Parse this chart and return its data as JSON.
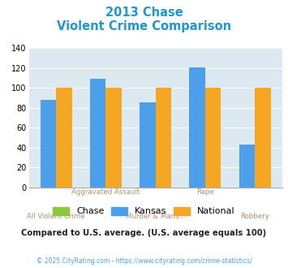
{
  "title_line1": "2013 Chase",
  "title_line2": "Violent Crime Comparison",
  "categories": [
    "All Violent Crime",
    "Aggravated Assault",
    "Murder & Mans...",
    "Rape",
    "Robbery"
  ],
  "kansas_values": [
    88,
    109,
    86,
    121,
    43
  ],
  "national_values": [
    100,
    100,
    100,
    100,
    100
  ],
  "bar_colors": {
    "chase": "#8dc63f",
    "kansas": "#4d9fea",
    "national": "#f5a623"
  },
  "ylim": [
    0,
    140
  ],
  "yticks": [
    0,
    20,
    40,
    60,
    80,
    100,
    120,
    140
  ],
  "background_color": "#dce9f0",
  "title_color": "#2196d4",
  "xlabel_color": "#b09070",
  "note_text": "Compared to U.S. average. (U.S. average equals 100)",
  "note_color": "#222222",
  "copyright_text": "© 2025 CityRating.com - https://www.cityrating.com/crime-statistics/",
  "copyright_color": "#4d9fea",
  "legend_labels": [
    "Chase",
    "Kansas",
    "National"
  ],
  "bar_width": 0.32,
  "top_xlabels": [
    "",
    "Aggravated Assault",
    "",
    "Rape",
    ""
  ],
  "bottom_xlabels": [
    "All Violent Crime",
    "",
    "Murder & Mans...",
    "",
    "Robbery"
  ]
}
